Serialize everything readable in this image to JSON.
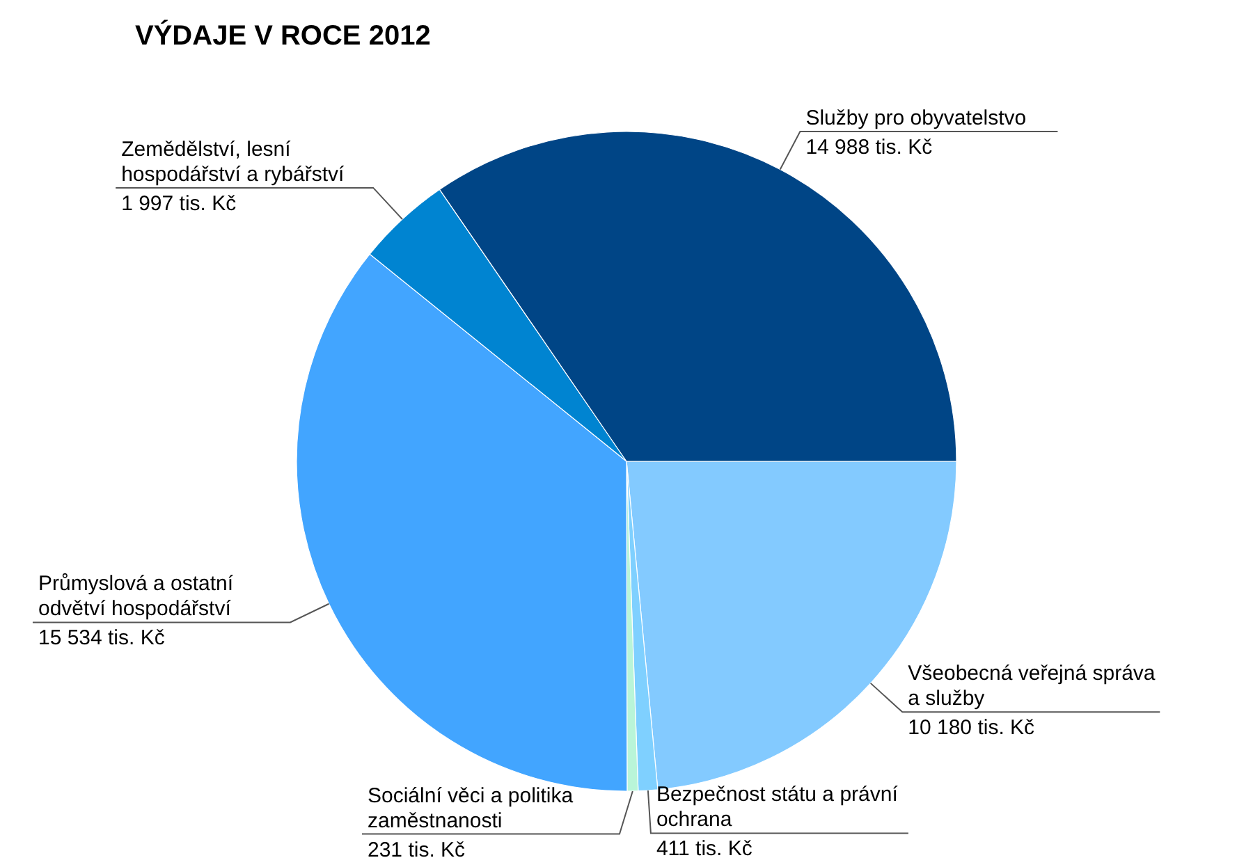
{
  "chart_data": {
    "type": "pie",
    "title": "VÝDAJE V ROCE 2012",
    "categories": [
      "Všeobecná veřejná správa a služby",
      "Bezpečnost státu a právní ochrana",
      "Sociální věci a politika zaměstnanosti",
      "Průmyslová a ostatní odvětví hospodářství",
      "Zemědělství, lesní hospodářství a rybářství",
      "Služby pro obyvatelstvo"
    ],
    "values": [
      10180,
      411,
      231,
      15534,
      1997,
      14988
    ],
    "value_labels": [
      "10 180 tis. Kč",
      "411 tis. Kč",
      "231 tis. Kč",
      "15 534 tis. Kč",
      "1 997 tis. Kč",
      "14 988 tis. Kč"
    ],
    "colors": [
      "#83caff",
      "#7fd0ff",
      "#b9f5d8",
      "#42a5ff",
      "#0084d1",
      "#004586"
    ],
    "legend": false
  }
}
